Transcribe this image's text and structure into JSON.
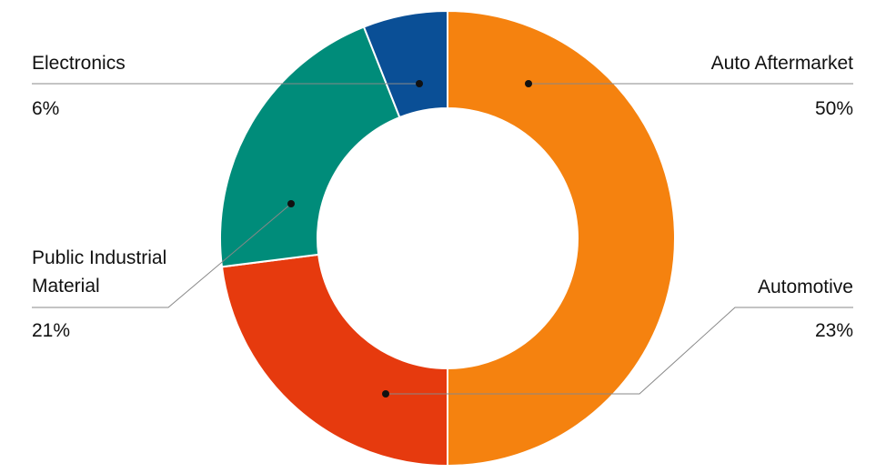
{
  "chart_data": {
    "type": "donut",
    "categories": [
      "Auto Aftermarket",
      "Automotive",
      "Public Industrial Material",
      "Electronics"
    ],
    "values": [
      50,
      23,
      21,
      6
    ],
    "value_labels": [
      "50%",
      "23%",
      "21%",
      "6%"
    ],
    "colors": [
      "#f5820f",
      "#e63a0e",
      "#008c7a",
      "#0a4f96"
    ]
  }
}
